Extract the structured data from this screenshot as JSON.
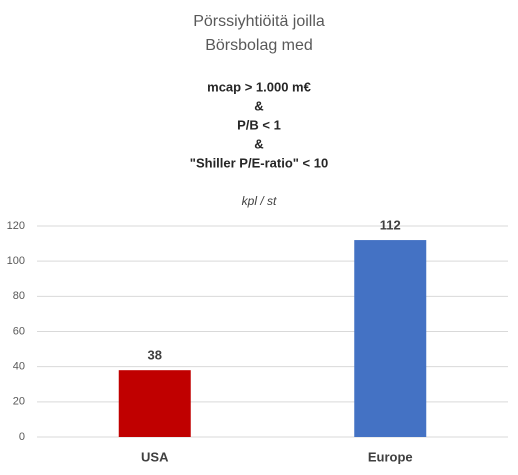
{
  "chart_data": {
    "type": "bar",
    "title": [
      "Pörssiyhtiöitä joilla",
      "Börsbolag med"
    ],
    "subtitle": [
      "mcap > 1.000 m€",
      "&",
      "P/B < 1",
      "&",
      "\"Shiller P/E-ratio\" < 10"
    ],
    "y_label": "kpl / st",
    "categories": [
      "USA",
      "Europe"
    ],
    "values": [
      38,
      112
    ],
    "colors": [
      "#c00000",
      "#4472c4"
    ],
    "ylim": [
      0,
      120
    ],
    "yticks": [
      0,
      20,
      40,
      60,
      80,
      100,
      120
    ],
    "grid": true
  }
}
